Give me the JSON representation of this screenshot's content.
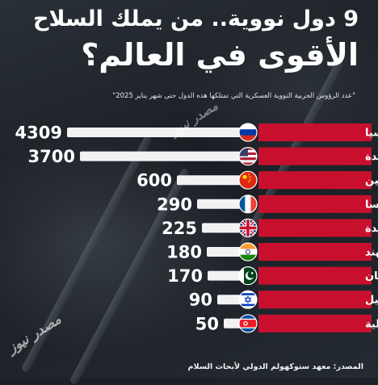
{
  "title_line1": "9 دول نووية.. من يملك السلاح",
  "title_line2": "الأقوى في العالم؟",
  "subtitle": "\"عدد الرؤوس الحربية النووية العسكرية التي تمتلكها هذه الدول حتى شهر يناير 2025\"",
  "source": "المصدر: معهد ستوكهولم الدولي لأبحاث السلام",
  "logo_text": "مصدر نيوز",
  "colors": {
    "background": "#1c2128",
    "label_bar": "#c8102e",
    "value_bar": "#f2f2f2",
    "text": "#ffffff"
  },
  "chart_data": {
    "type": "bar",
    "orientation": "horizontal",
    "categories": [
      "روسيا",
      "الولايات المتحدة",
      "الصين",
      "فرنسا",
      "المملكة المتحدة",
      "الهند",
      "باكستان",
      "إسرائيل",
      "كوريا الشمالية"
    ],
    "values": [
      4309,
      3700,
      600,
      290,
      225,
      180,
      170,
      90,
      50
    ],
    "flag_icons": [
      "flag-russia-icon",
      "flag-usa-icon",
      "flag-china-icon",
      "flag-france-icon",
      "flag-uk-icon",
      "flag-india-icon",
      "flag-pakistan-icon",
      "flag-israel-icon",
      "flag-north-korea-icon"
    ]
  }
}
